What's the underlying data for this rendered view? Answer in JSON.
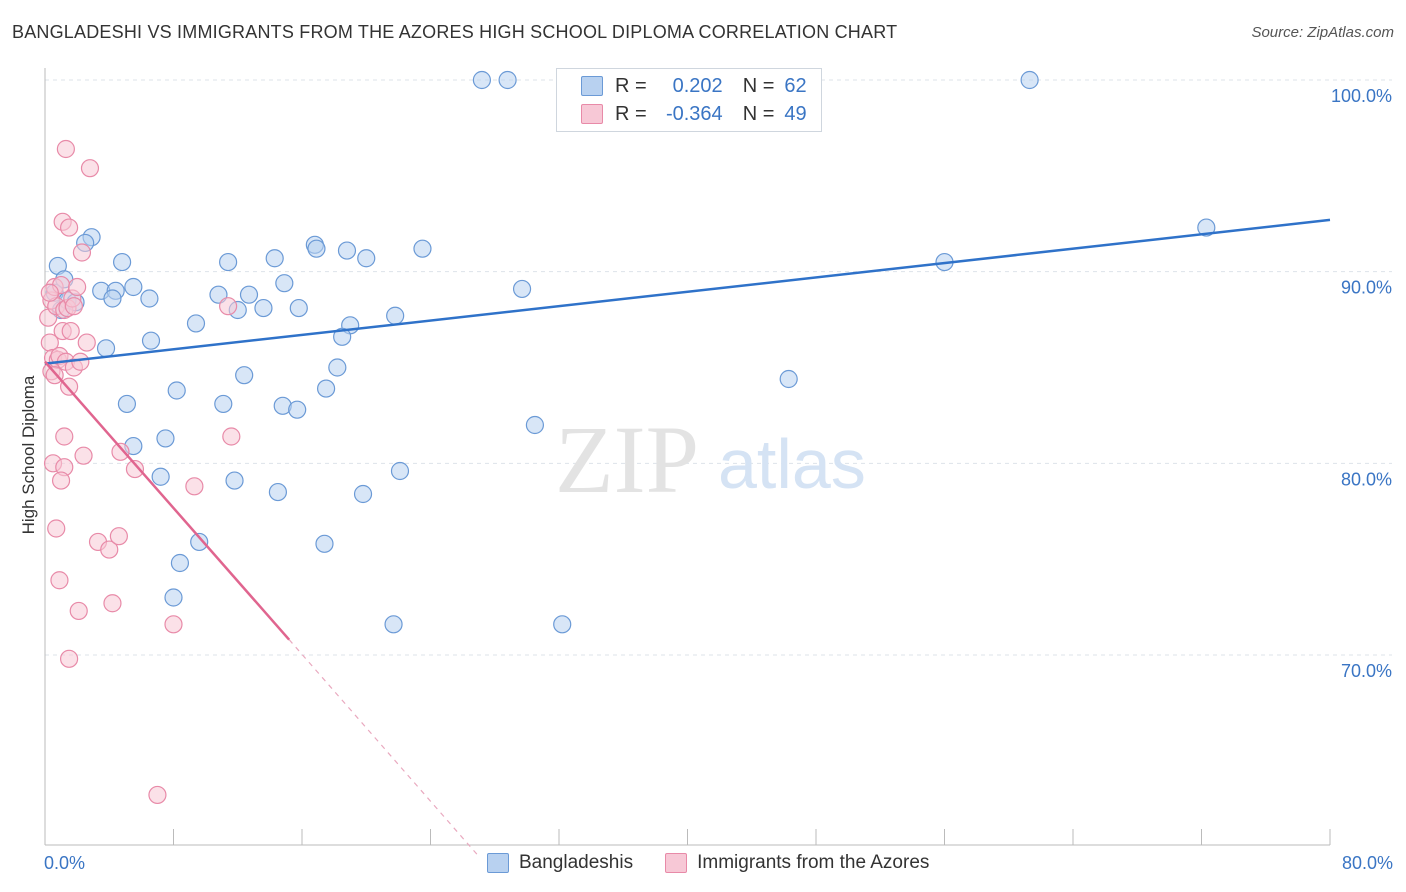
{
  "title": "BANGLADESHI VS IMMIGRANTS FROM THE AZORES HIGH SCHOOL DIPLOMA CORRELATION CHART",
  "source": "Source: ZipAtlas.com",
  "watermark": {
    "zip": "ZIP",
    "atlas": "atlas"
  },
  "legend": {
    "rows": [
      {
        "r_label": "R =",
        "r_value": "0.202",
        "n_label": "N =",
        "n_value": "62"
      },
      {
        "r_label": "R =",
        "r_value": "-0.364",
        "n_label": "N =",
        "n_value": "49"
      }
    ]
  },
  "bottom_legend": [
    "Bangladeshis",
    "Immigrants from the Azores"
  ],
  "colors": {
    "blue_fill": "#b8d1f0",
    "blue_stroke": "#6b9ad6",
    "blue_line": "#2f72c9",
    "pink_fill": "#f7c8d6",
    "pink_stroke": "#e88aa8",
    "pink_line": "#e0658f",
    "axis_text": "#3a75c4",
    "grid": "#dde3ea"
  },
  "chart_data": {
    "type": "scatter",
    "title": "BANGLADESHI VS IMMIGRANTS FROM THE AZORES HIGH SCHOOL DIPLOMA CORRELATION CHART",
    "xlabel": "",
    "ylabel": "High School Diploma",
    "xlim": [
      0,
      80
    ],
    "ylim": [
      60,
      102
    ],
    "x_tick_labels": [
      "0.0%",
      "80.0%"
    ],
    "y_ticks": [
      70,
      80,
      90,
      100
    ],
    "y_tick_labels": [
      "70.0%",
      "80.0%",
      "90.0%",
      "100.0%"
    ],
    "series": [
      {
        "name": "Bangladeshis",
        "R": 0.202,
        "N": 62,
        "trend": {
          "x": [
            0,
            80
          ],
          "y": [
            85.2,
            92.7
          ]
        },
        "points": [
          [
            0.6,
            88.9
          ],
          [
            0.8,
            90.3
          ],
          [
            1.0,
            88.0
          ],
          [
            1.2,
            89.6
          ],
          [
            1.4,
            88.5
          ],
          [
            1.9,
            88.4
          ],
          [
            2.9,
            91.8
          ],
          [
            2.5,
            91.5
          ],
          [
            3.5,
            89.0
          ],
          [
            4.4,
            89.0
          ],
          [
            4.2,
            88.6
          ],
          [
            3.8,
            86.0
          ],
          [
            4.8,
            90.5
          ],
          [
            5.5,
            89.2
          ],
          [
            6.5,
            88.6
          ],
          [
            6.6,
            86.4
          ],
          [
            7.5,
            81.3
          ],
          [
            5.1,
            83.1
          ],
          [
            5.5,
            80.9
          ],
          [
            7.2,
            79.3
          ],
          [
            8.2,
            83.8
          ],
          [
            8.0,
            73.0
          ],
          [
            8.4,
            74.8
          ],
          [
            9.4,
            87.3
          ],
          [
            9.6,
            75.9
          ],
          [
            10.8,
            88.8
          ],
          [
            11.4,
            90.5
          ],
          [
            12.0,
            88.0
          ],
          [
            11.1,
            83.1
          ],
          [
            12.4,
            84.6
          ],
          [
            11.8,
            79.1
          ],
          [
            12.7,
            88.8
          ],
          [
            13.6,
            88.1
          ],
          [
            14.5,
            78.5
          ],
          [
            14.3,
            90.7
          ],
          [
            14.9,
            89.4
          ],
          [
            15.8,
            88.1
          ],
          [
            14.8,
            83.0
          ],
          [
            15.7,
            82.8
          ],
          [
            16.8,
            91.4
          ],
          [
            16.9,
            91.2
          ],
          [
            17.5,
            83.9
          ],
          [
            17.4,
            75.8
          ],
          [
            18.8,
            91.1
          ],
          [
            19.0,
            87.2
          ],
          [
            18.5,
            86.6
          ],
          [
            18.2,
            85.0
          ],
          [
            20.0,
            90.7
          ],
          [
            19.8,
            78.4
          ],
          [
            21.8,
            87.7
          ],
          [
            22.1,
            79.6
          ],
          [
            21.7,
            71.6
          ],
          [
            23.5,
            91.2
          ],
          [
            29.7,
            89.1
          ],
          [
            30.5,
            82.0
          ],
          [
            32.2,
            71.6
          ],
          [
            27.2,
            100.0
          ],
          [
            28.8,
            100.0
          ],
          [
            61.3,
            100.0
          ],
          [
            46.3,
            84.4
          ],
          [
            56.0,
            90.5
          ],
          [
            72.3,
            92.3
          ]
        ]
      },
      {
        "name": "Immigrants from the Azores",
        "R": -0.364,
        "N": 49,
        "trend": {
          "x": [
            0,
            15.2
          ],
          "y": [
            85.3,
            70.8
          ]
        },
        "trend_extension": {
          "x": [
            15.2,
            27
          ],
          "y": [
            70.8,
            59.5
          ]
        },
        "points": [
          [
            0.2,
            87.6
          ],
          [
            0.3,
            86.3
          ],
          [
            0.4,
            88.5
          ],
          [
            0.5,
            85.5
          ],
          [
            0.4,
            84.8
          ],
          [
            0.6,
            89.2
          ],
          [
            0.7,
            88.2
          ],
          [
            0.8,
            85.4
          ],
          [
            0.6,
            84.6
          ],
          [
            0.9,
            85.6
          ],
          [
            1.0,
            89.3
          ],
          [
            1.1,
            86.9
          ],
          [
            1.2,
            88.0
          ],
          [
            1.3,
            85.3
          ],
          [
            1.4,
            88.1
          ],
          [
            1.5,
            84.0
          ],
          [
            1.6,
            86.9
          ],
          [
            1.7,
            88.6
          ],
          [
            1.8,
            85.0
          ],
          [
            2.0,
            89.2
          ],
          [
            2.2,
            85.3
          ],
          [
            2.3,
            91.0
          ],
          [
            2.6,
            86.3
          ],
          [
            1.1,
            92.6
          ],
          [
            1.5,
            92.3
          ],
          [
            1.3,
            96.4
          ],
          [
            2.8,
            95.4
          ],
          [
            1.2,
            81.4
          ],
          [
            0.5,
            80.0
          ],
          [
            1.2,
            79.8
          ],
          [
            1.0,
            79.1
          ],
          [
            2.4,
            80.4
          ],
          [
            4.7,
            80.6
          ],
          [
            5.6,
            79.7
          ],
          [
            0.7,
            76.6
          ],
          [
            3.3,
            75.9
          ],
          [
            4.0,
            75.5
          ],
          [
            4.6,
            76.2
          ],
          [
            0.9,
            73.9
          ],
          [
            4.2,
            72.7
          ],
          [
            2.1,
            72.3
          ],
          [
            8.0,
            71.6
          ],
          [
            1.5,
            69.8
          ],
          [
            11.6,
            81.4
          ],
          [
            9.3,
            78.8
          ],
          [
            11.4,
            88.2
          ],
          [
            7.0,
            62.7
          ],
          [
            0.3,
            88.9
          ],
          [
            1.8,
            88.2
          ]
        ]
      }
    ]
  }
}
